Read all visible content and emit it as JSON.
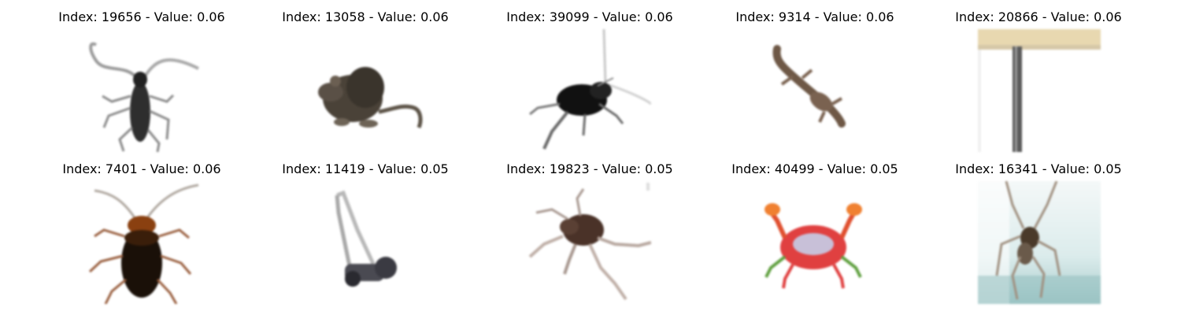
{
  "grid": {
    "rows": [
      [
        {
          "title": "Index: 19656 - Value: 0.06",
          "image": "longhorn-beetle-thumbnail"
        },
        {
          "title": "Index: 13058 - Value: 0.06",
          "image": "mouse-thumbnail"
        },
        {
          "title": "Index: 39099 - Value: 0.06",
          "image": "cricket-thumbnail"
        },
        {
          "title": "Index: 9314 - Value: 0.06",
          "image": "lizard-thumbnail"
        },
        {
          "title": "Index: 20866 - Value: 0.06",
          "image": "table-leg-thumbnail"
        }
      ],
      [
        {
          "title": "Index: 7401 - Value: 0.06",
          "image": "cockroach-thumbnail"
        },
        {
          "title": "Index: 11419 - Value: 0.05",
          "image": "lawn-mower-thumbnail"
        },
        {
          "title": "Index: 19823 - Value: 0.05",
          "image": "spider-thumbnail"
        },
        {
          "title": "Index: 40499 - Value: 0.05",
          "image": "crab-thumbnail"
        },
        {
          "title": "Index: 16341 - Value: 0.05",
          "image": "spider-on-glass-thumbnail"
        }
      ]
    ]
  }
}
